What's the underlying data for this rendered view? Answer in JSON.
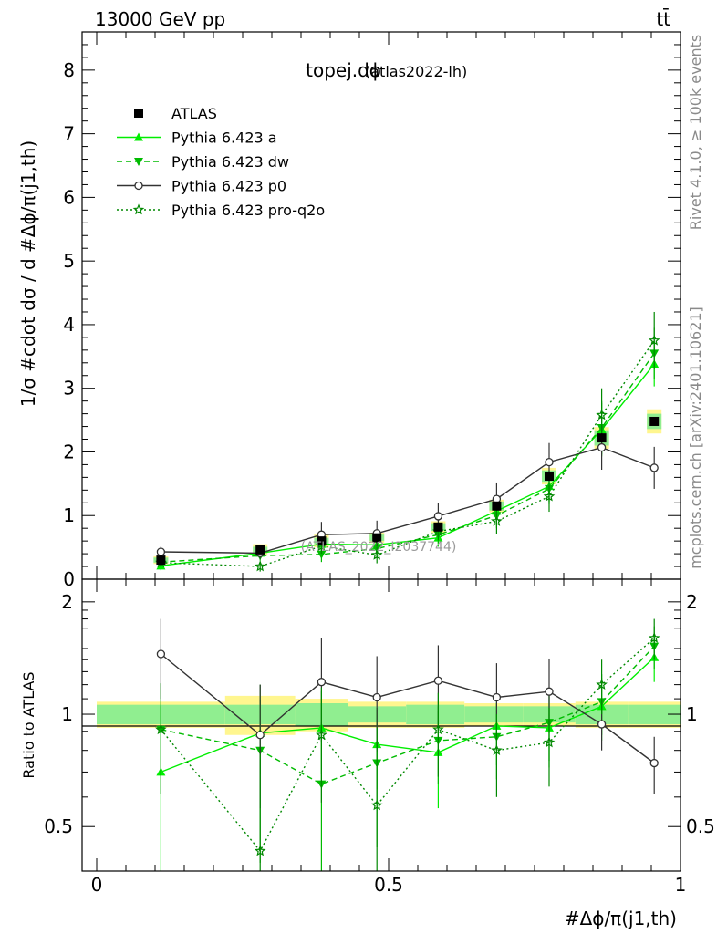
{
  "header": {
    "beam_label": "13000 GeV pp",
    "process_label": "tt̄",
    "side_label_rivet": "Rivet 4.1.0, ≥ 100k events",
    "side_label_mcplots": "mcplots.cern.ch [arXiv:2401.10621]",
    "watermark": "(ATLAS_2022_I2037744)"
  },
  "chart_data": [
    {
      "type": "scatter",
      "panel": "main",
      "title": "topej.dϕ",
      "subtitle": "(atlas2022-lh)",
      "ylabel": "1/σ #cdot dσ / d #Δϕ/π(j1,th)",
      "ylim": [
        0,
        8.6
      ],
      "xlim": [
        -0.025,
        1.0
      ],
      "yticks": [
        "0",
        "1",
        "2",
        "3",
        "4",
        "5",
        "6",
        "7",
        "8"
      ],
      "x": [
        0.11,
        0.28,
        0.385,
        0.48,
        0.585,
        0.685,
        0.775,
        0.865,
        0.955
      ],
      "series": [
        {
          "name": "ATLAS",
          "color": "#000000",
          "marker": "square",
          "line": "none",
          "values": [
            0.3,
            0.46,
            0.6,
            0.65,
            0.82,
            1.15,
            1.62,
            2.22,
            2.48
          ],
          "band_inner": [
            0.04,
            0.05,
            0.05,
            0.05,
            0.06,
            0.07,
            0.09,
            0.12,
            0.12
          ],
          "band_outer": [
            0.06,
            0.09,
            0.1,
            0.08,
            0.09,
            0.1,
            0.13,
            0.17,
            0.19
          ]
        },
        {
          "name": "Pythia 6.423 a",
          "color": "#00ee00",
          "marker": "triangle-up",
          "line": "solid",
          "values": [
            0.21,
            0.41,
            0.55,
            0.54,
            0.65,
            1.07,
            1.46,
            2.35,
            3.38
          ],
          "errors": [
            0.07,
            0.08,
            0.12,
            0.13,
            0.14,
            0.2,
            0.24,
            0.42,
            0.35
          ]
        },
        {
          "name": "Pythia 6.423 dw",
          "color": "#00bb00",
          "marker": "triangle-down",
          "line": "dashed",
          "values": [
            0.27,
            0.37,
            0.39,
            0.48,
            0.7,
            1.0,
            1.42,
            2.38,
            3.55
          ],
          "errors": [
            0.07,
            0.08,
            0.12,
            0.13,
            0.14,
            0.2,
            0.24,
            0.42,
            0.4
          ]
        },
        {
          "name": "Pythia 6.423 p0",
          "color": "#333333",
          "marker": "circle-open",
          "line": "solid",
          "values": [
            0.43,
            0.41,
            0.7,
            0.72,
            0.99,
            1.26,
            1.84,
            2.07,
            1.75
          ],
          "errors": [
            0.08,
            0.09,
            0.2,
            0.2,
            0.2,
            0.26,
            0.3,
            0.35,
            0.33
          ]
        },
        {
          "name": "Pythia 6.423 pro-q2o",
          "color": "#008800",
          "marker": "star",
          "line": "dotted",
          "values": [
            0.26,
            0.2,
            0.52,
            0.38,
            0.75,
            0.91,
            1.3,
            2.58,
            3.75
          ],
          "errors": [
            0.07,
            0.08,
            0.12,
            0.13,
            0.14,
            0.2,
            0.24,
            0.42,
            0.45
          ]
        }
      ]
    },
    {
      "type": "scatter",
      "panel": "ratio",
      "ylabel": "Ratio to ATLAS",
      "xlabel": "#Δϕ/π(j1,th)",
      "ylim": [
        0.38,
        2.3
      ],
      "xlim": [
        -0.025,
        1.0
      ],
      "yticks": [
        "0.5",
        "1",
        "2"
      ],
      "xticks": [
        "0",
        "0.5",
        "1"
      ],
      "band_x": [
        0,
        0.22,
        0.34,
        0.43,
        0.53,
        0.63,
        0.73,
        0.82,
        0.91,
        1.0
      ],
      "band_inner": [
        0.06,
        0.06,
        0.07,
        0.05,
        0.06,
        0.05,
        0.05,
        0.06,
        0.06
      ],
      "band_outer": [
        0.08,
        0.12,
        0.1,
        0.08,
        0.08,
        0.07,
        0.07,
        0.08,
        0.08
      ],
      "series": [
        {
          "name": "Pythia 6.423 a",
          "values": [
            0.7,
            0.89,
            0.92,
            0.83,
            0.79,
            0.93,
            0.92,
            1.05,
            1.42
          ],
          "errors": [
            0.35,
            0.2,
            0.23,
            0.2,
            0.23,
            0.2,
            0.2,
            0.2,
            0.2
          ]
        },
        {
          "name": "Pythia 6.423 dw",
          "values": [
            0.91,
            0.8,
            0.65,
            0.74,
            0.85,
            0.87,
            0.95,
            1.08,
            1.52
          ],
          "errors": [
            0.3,
            0.4,
            0.3,
            0.3,
            0.2,
            0.2,
            0.2,
            0.2,
            0.2
          ]
        },
        {
          "name": "Pythia 6.423 p0",
          "values": [
            1.45,
            0.88,
            1.22,
            1.11,
            1.23,
            1.11,
            1.15,
            0.94,
            0.74
          ],
          "errors": [
            0.35,
            0.32,
            0.38,
            0.32,
            0.3,
            0.26,
            0.26,
            0.14,
            0.13
          ]
        },
        {
          "name": "Pythia 6.423 pro-q2o",
          "values": [
            0.91,
            0.43,
            0.88,
            0.57,
            0.91,
            0.8,
            0.84,
            1.2,
            1.6
          ],
          "errors": [
            0.3,
            0.35,
            0.3,
            0.35,
            0.23,
            0.2,
            0.2,
            0.2,
            0.2
          ]
        }
      ]
    }
  ]
}
